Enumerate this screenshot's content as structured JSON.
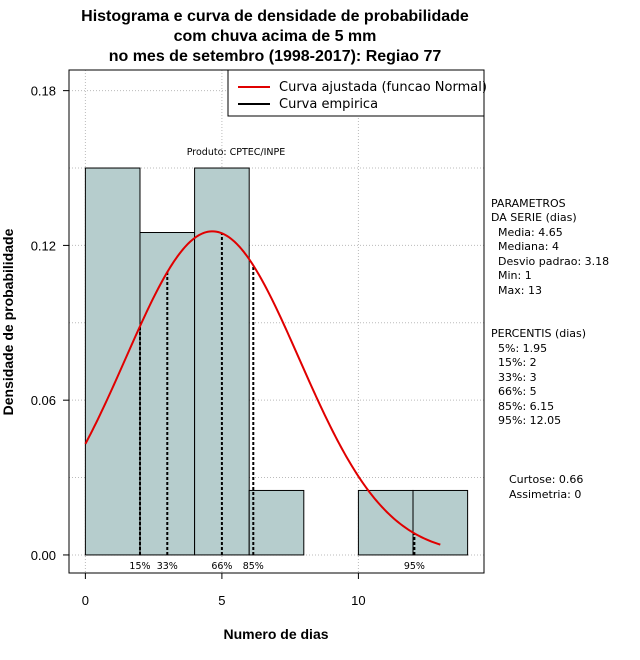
{
  "chart_data": {
    "type": "histogram",
    "title_lines": [
      "Histograma e curva de densidade de probabilidade",
      "com chuva acima de 5 mm",
      "no mes de setembro (1998-2017): Regiao 77"
    ],
    "xlabel": "Numero de dias",
    "ylabel": "Densidade de probabilidade",
    "xlim": [
      -0.6,
      14.6
    ],
    "ylim": [
      -0.007,
      0.188
    ],
    "xticks": [
      0,
      5,
      10
    ],
    "yticks": [
      0.0,
      0.06,
      0.12,
      0.18
    ],
    "ytick_labels": [
      "0.00",
      "0.06",
      "0.12",
      "0.18"
    ],
    "bins": [
      {
        "x0": 0,
        "x1": 2,
        "density": 0.15
      },
      {
        "x0": 2,
        "x1": 4,
        "density": 0.125
      },
      {
        "x0": 4,
        "x1": 6,
        "density": 0.15
      },
      {
        "x0": 6,
        "x1": 8,
        "density": 0.025
      },
      {
        "x0": 8,
        "x1": 10,
        "density": 0.0
      },
      {
        "x0": 10,
        "x1": 12,
        "density": 0.025
      },
      {
        "x0": 12,
        "x1": 14,
        "density": 0.025
      }
    ],
    "fitted_curve": {
      "type": "normal",
      "mean": 4.65,
      "sd": 3.18,
      "x_range": [
        0,
        13
      ],
      "color": "#e00000"
    },
    "percentile_lines": [
      {
        "label": "15%",
        "x": 2
      },
      {
        "label": "33%",
        "x": 3
      },
      {
        "label": "66%",
        "x": 5
      },
      {
        "label": "85%",
        "x": 6.15
      },
      {
        "label": "95%",
        "x": 12.05
      }
    ],
    "legend": [
      {
        "label": "Curva ajustada (funcao Normal)",
        "color": "#e00000"
      },
      {
        "label": "Curva empirica",
        "color": "#000000"
      }
    ],
    "annotation": "Produto: CPTEC/INPE",
    "colors": {
      "bar_fill": "#b6cdcd",
      "grid": "#bbbbbb"
    }
  },
  "side_panel": {
    "params_title": [
      "PARAMETROS",
      "DA SERIE (dias)"
    ],
    "params": [
      "Media: 4.65",
      "Mediana: 4",
      "Desvio padrao: 3.18",
      "Min: 1",
      "Max: 13"
    ],
    "percentis_title": "PERCENTIS (dias)",
    "percentis": [
      "5%: 1.95",
      "15%: 2",
      "33%: 3",
      "66%: 5",
      "85%: 6.15",
      "95%: 12.05"
    ],
    "curtose": "Curtose: 0.66",
    "assimetria": "Assimetria: 0"
  }
}
